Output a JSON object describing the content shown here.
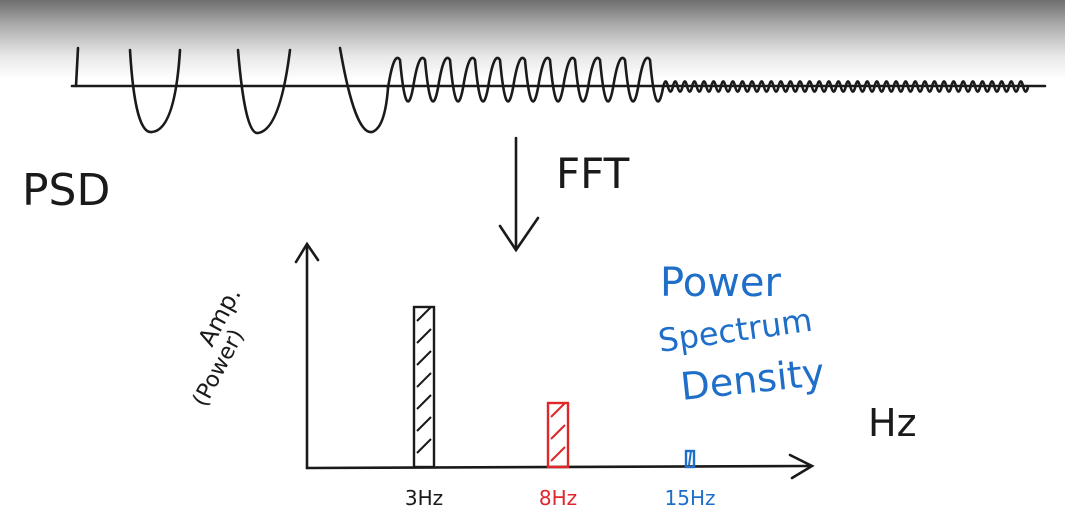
{
  "labels": {
    "psd": "PSD",
    "fft": "FFT",
    "yaxis_line1": "Amp.",
    "yaxis_line2": "(Power)",
    "xaxis_unit": "Hz",
    "title_line1": "Power",
    "title_line2": "Spectrum",
    "title_line3": "Density"
  },
  "chart_data": {
    "type": "bar",
    "categories": [
      "3Hz",
      "8Hz",
      "15Hz"
    ],
    "values": [
      10,
      4,
      1
    ],
    "colors": [
      "#1a1a1a",
      "#e0252b",
      "#1f6fc9"
    ],
    "xlabel": "Hz",
    "ylabel": "Amp. (Power)",
    "title": "Power Spectrum Density"
  },
  "colors": {
    "ink": "#1a1a1a",
    "red": "#e0252b",
    "blue": "#1f6fc9"
  }
}
